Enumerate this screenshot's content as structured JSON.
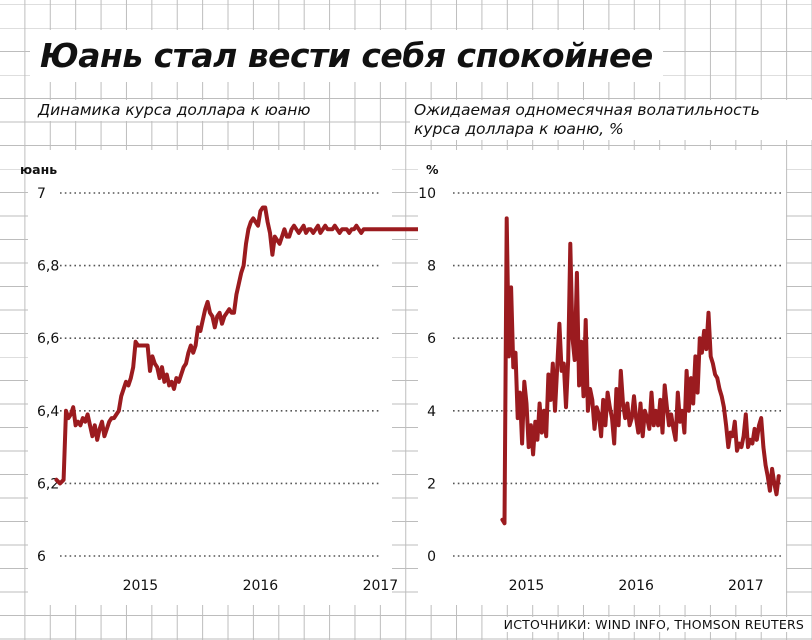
{
  "title": "Юань стал вести себя спокойнее",
  "source": "ИСТОЧНИКИ: WIND INFO, THOMSON REUTERS",
  "colors": {
    "line": "#9b1b1f",
    "grid": "#bdbdbd",
    "dots": "#555555"
  },
  "chart_data": [
    {
      "type": "line",
      "title": "Динамика курса доллара к юаню",
      "ylabel": "юань",
      "ylim": [
        6,
        7
      ],
      "yticks": [
        6,
        6.2,
        6.4,
        6.6,
        6.8,
        7
      ],
      "ytick_labels": [
        "6",
        "6,2",
        "6,4",
        "6,6",
        "6,8",
        "7"
      ],
      "xlim": [
        2014.33,
        2017.33
      ],
      "xticks": [
        2015,
        2016,
        2017
      ],
      "xtick_labels": [
        "2015",
        "2016",
        "2017"
      ],
      "grid": "dotted horizontal",
      "series": [
        {
          "x": [
            2014.3,
            2014.33,
            2014.36,
            2014.38,
            2014.4,
            2014.42,
            2014.44,
            2014.46,
            2014.48,
            2014.5,
            2014.52,
            2014.54,
            2014.56,
            2014.58,
            2014.6,
            2014.62,
            2014.64,
            2014.66,
            2014.68,
            2014.7,
            2014.72,
            2014.74,
            2014.76,
            2014.78,
            2014.8,
            2014.82,
            2014.84,
            2014.86,
            2014.88,
            2014.9,
            2014.92,
            2014.94,
            2014.96,
            2014.98,
            2015.0,
            2015.02,
            2015.04,
            2015.06,
            2015.08,
            2015.1,
            2015.12,
            2015.14,
            2015.16,
            2015.18,
            2015.2,
            2015.22,
            2015.24,
            2015.26,
            2015.28,
            2015.3,
            2015.32,
            2015.34,
            2015.36,
            2015.38,
            2015.4,
            2015.42,
            2015.44,
            2015.46,
            2015.48,
            2015.5,
            2015.52,
            2015.54,
            2015.56,
            2015.58,
            2015.6,
            2015.62,
            2015.64,
            2015.66,
            2015.68,
            2015.7,
            2015.72,
            2015.74,
            2015.76,
            2015.78,
            2015.8,
            2015.82,
            2015.84,
            2015.86,
            2015.88,
            2015.9,
            2015.92,
            2015.94,
            2015.96,
            2015.98,
            2016.0,
            2016.02,
            2016.04,
            2016.06,
            2016.08,
            2016.1,
            2016.12,
            2016.14,
            2016.16,
            2016.18,
            2016.2,
            2016.22,
            2016.24,
            2016.26,
            2016.28,
            2016.3,
            2016.32,
            2016.34,
            2016.36,
            2016.38,
            2016.4,
            2016.42,
            2016.44,
            2016.46,
            2016.48,
            2016.5,
            2016.52,
            2016.54,
            2016.56,
            2016.58,
            2016.6,
            2016.62,
            2016.64,
            2016.66,
            2016.68,
            2016.7,
            2016.72,
            2016.74,
            2016.76,
            2016.78,
            2016.8,
            2016.82,
            2016.84,
            2016.86,
            2016.88,
            2016.9,
            2016.92,
            2016.94,
            2016.96,
            2016.98,
            2017.0,
            2017.02,
            2017.04,
            2017.06,
            2017.08,
            2017.1,
            2017.12,
            2017.14,
            2017.16,
            2017.18,
            2017.2,
            2017.22,
            2017.24,
            2017.26,
            2017.28,
            2017.3,
            2017.32,
            2017.34,
            2017.36,
            2017.38
          ],
          "values": [
            6.21,
            6.2,
            6.21,
            6.4,
            6.38,
            6.39,
            6.41,
            6.36,
            6.37,
            6.36,
            6.38,
            6.37,
            6.39,
            6.36,
            6.33,
            6.36,
            6.32,
            6.35,
            6.37,
            6.33,
            6.35,
            6.37,
            6.38,
            6.38,
            6.39,
            6.4,
            6.44,
            6.46,
            6.48,
            6.47,
            6.49,
            6.52,
            6.59,
            6.58,
            6.58,
            6.58,
            6.58,
            6.58,
            6.51,
            6.55,
            6.53,
            6.52,
            6.49,
            6.52,
            6.48,
            6.5,
            6.47,
            6.48,
            6.46,
            6.49,
            6.48,
            6.5,
            6.52,
            6.53,
            6.56,
            6.58,
            6.56,
            6.58,
            6.63,
            6.62,
            6.65,
            6.68,
            6.7,
            6.67,
            6.66,
            6.63,
            6.66,
            6.67,
            6.64,
            6.66,
            6.67,
            6.68,
            6.67,
            6.67,
            6.72,
            6.75,
            6.78,
            6.8,
            6.86,
            6.9,
            6.92,
            6.93,
            6.92,
            6.91,
            6.95,
            6.96,
            6.96,
            6.92,
            6.89,
            6.83,
            6.88,
            6.87,
            6.86,
            6.88,
            6.9,
            6.88,
            6.88,
            6.9,
            6.91,
            6.9,
            6.89,
            6.9,
            6.91,
            6.89,
            6.9,
            6.9,
            6.89,
            6.9,
            6.91,
            6.89,
            6.9,
            6.91,
            6.9,
            6.9,
            6.9,
            6.91,
            6.9,
            6.89,
            6.9,
            6.9,
            6.9,
            6.89,
            6.9,
            6.9,
            6.91,
            6.9,
            6.89,
            6.9,
            6.9,
            6.9,
            6.9,
            6.9,
            6.9,
            6.9,
            6.9,
            6.9,
            6.9,
            6.9,
            6.9,
            6.9,
            6.9,
            6.9,
            6.9,
            6.9,
            6.9,
            6.9,
            6.9,
            6.9,
            6.9,
            6.9,
            6.9,
            6.9,
            6.9,
            6.9
          ]
        }
      ]
    },
    {
      "type": "line",
      "title": "Ожидаемая одномесячная волатильность курса доллара к юаню, %",
      "ylabel": "%",
      "ylim": [
        0,
        10
      ],
      "yticks": [
        0,
        2,
        4,
        6,
        8,
        10
      ],
      "ytick_labels": [
        "0",
        "2",
        "4",
        "6",
        "8",
        "10"
      ],
      "xlim": [
        2014.33,
        2017.33
      ],
      "xticks": [
        2015,
        2016,
        2017
      ],
      "xtick_labels": [
        "2015",
        "2016",
        "2017"
      ],
      "grid": "dotted horizontal",
      "series": [
        {
          "x": [
            2014.78,
            2014.8,
            2014.82,
            2014.84,
            2014.86,
            2014.88,
            2014.9,
            2014.92,
            2014.94,
            2014.96,
            2014.98,
            2015.0,
            2015.02,
            2015.04,
            2015.06,
            2015.08,
            2015.1,
            2015.12,
            2015.14,
            2015.16,
            2015.18,
            2015.2,
            2015.22,
            2015.24,
            2015.26,
            2015.28,
            2015.3,
            2015.32,
            2015.34,
            2015.36,
            2015.38,
            2015.4,
            2015.42,
            2015.44,
            2015.46,
            2015.48,
            2015.5,
            2015.52,
            2015.54,
            2015.56,
            2015.58,
            2015.6,
            2015.62,
            2015.64,
            2015.66,
            2015.68,
            2015.7,
            2015.72,
            2015.74,
            2015.76,
            2015.78,
            2015.8,
            2015.82,
            2015.84,
            2015.86,
            2015.88,
            2015.9,
            2015.92,
            2015.94,
            2015.96,
            2015.98,
            2016.0,
            2016.02,
            2016.04,
            2016.06,
            2016.08,
            2016.1,
            2016.12,
            2016.14,
            2016.16,
            2016.18,
            2016.2,
            2016.22,
            2016.24,
            2016.26,
            2016.28,
            2016.3,
            2016.32,
            2016.34,
            2016.36,
            2016.38,
            2016.4,
            2016.42,
            2016.44,
            2016.46,
            2016.48,
            2016.5,
            2016.52,
            2016.54,
            2016.56,
            2016.58,
            2016.6,
            2016.62,
            2016.64,
            2016.66,
            2016.68,
            2016.7,
            2016.72,
            2016.74,
            2016.76,
            2016.78,
            2016.8,
            2016.82,
            2016.84,
            2016.86,
            2016.88,
            2016.9,
            2016.92,
            2016.94,
            2016.96,
            2016.98,
            2017.0,
            2017.02,
            2017.04,
            2017.06,
            2017.08,
            2017.1,
            2017.12,
            2017.14,
            2017.16,
            2017.18,
            2017.2,
            2017.22,
            2017.24,
            2017.26,
            2017.28,
            2017.3
          ],
          "values": [
            1.0,
            0.9,
            9.3,
            5.5,
            7.4,
            5.2,
            5.6,
            3.8,
            4.5,
            3.1,
            4.8,
            4.2,
            3.0,
            3.6,
            2.8,
            3.7,
            3.2,
            4.2,
            3.4,
            4.0,
            3.3,
            5.0,
            4.3,
            5.3,
            4.0,
            5.2,
            6.4,
            5.1,
            5.3,
            4.1,
            5.4,
            8.6,
            6.0,
            5.4,
            7.8,
            4.7,
            5.9,
            4.4,
            6.5,
            4.0,
            4.6,
            4.3,
            3.5,
            4.1,
            3.9,
            3.3,
            4.3,
            3.6,
            4.5,
            4.1,
            3.8,
            3.1,
            4.6,
            3.6,
            5.1,
            4.2,
            3.8,
            4.2,
            3.6,
            3.8,
            4.4,
            3.8,
            3.4,
            4.2,
            3.3,
            4.0,
            3.8,
            3.5,
            4.5,
            3.6,
            4.0,
            3.6,
            4.3,
            3.4,
            4.7,
            4.1,
            3.6,
            3.9,
            3.5,
            3.2,
            4.5,
            3.7,
            4.0,
            3.4,
            5.1,
            4.0,
            4.9,
            4.2,
            5.5,
            4.5,
            6.0,
            5.6,
            6.2,
            5.7,
            6.7,
            5.5,
            5.3,
            5.0,
            4.9,
            4.6,
            4.4,
            4.1,
            3.6,
            3.0,
            3.4,
            3.3,
            3.7,
            2.9,
            3.1,
            3.0,
            3.3,
            3.9,
            3.0,
            3.2,
            3.1,
            3.5,
            3.2,
            3.6,
            3.8,
            3.0,
            2.5,
            2.2,
            1.8,
            2.4,
            2.0,
            1.7,
            2.2
          ]
        }
      ]
    }
  ]
}
